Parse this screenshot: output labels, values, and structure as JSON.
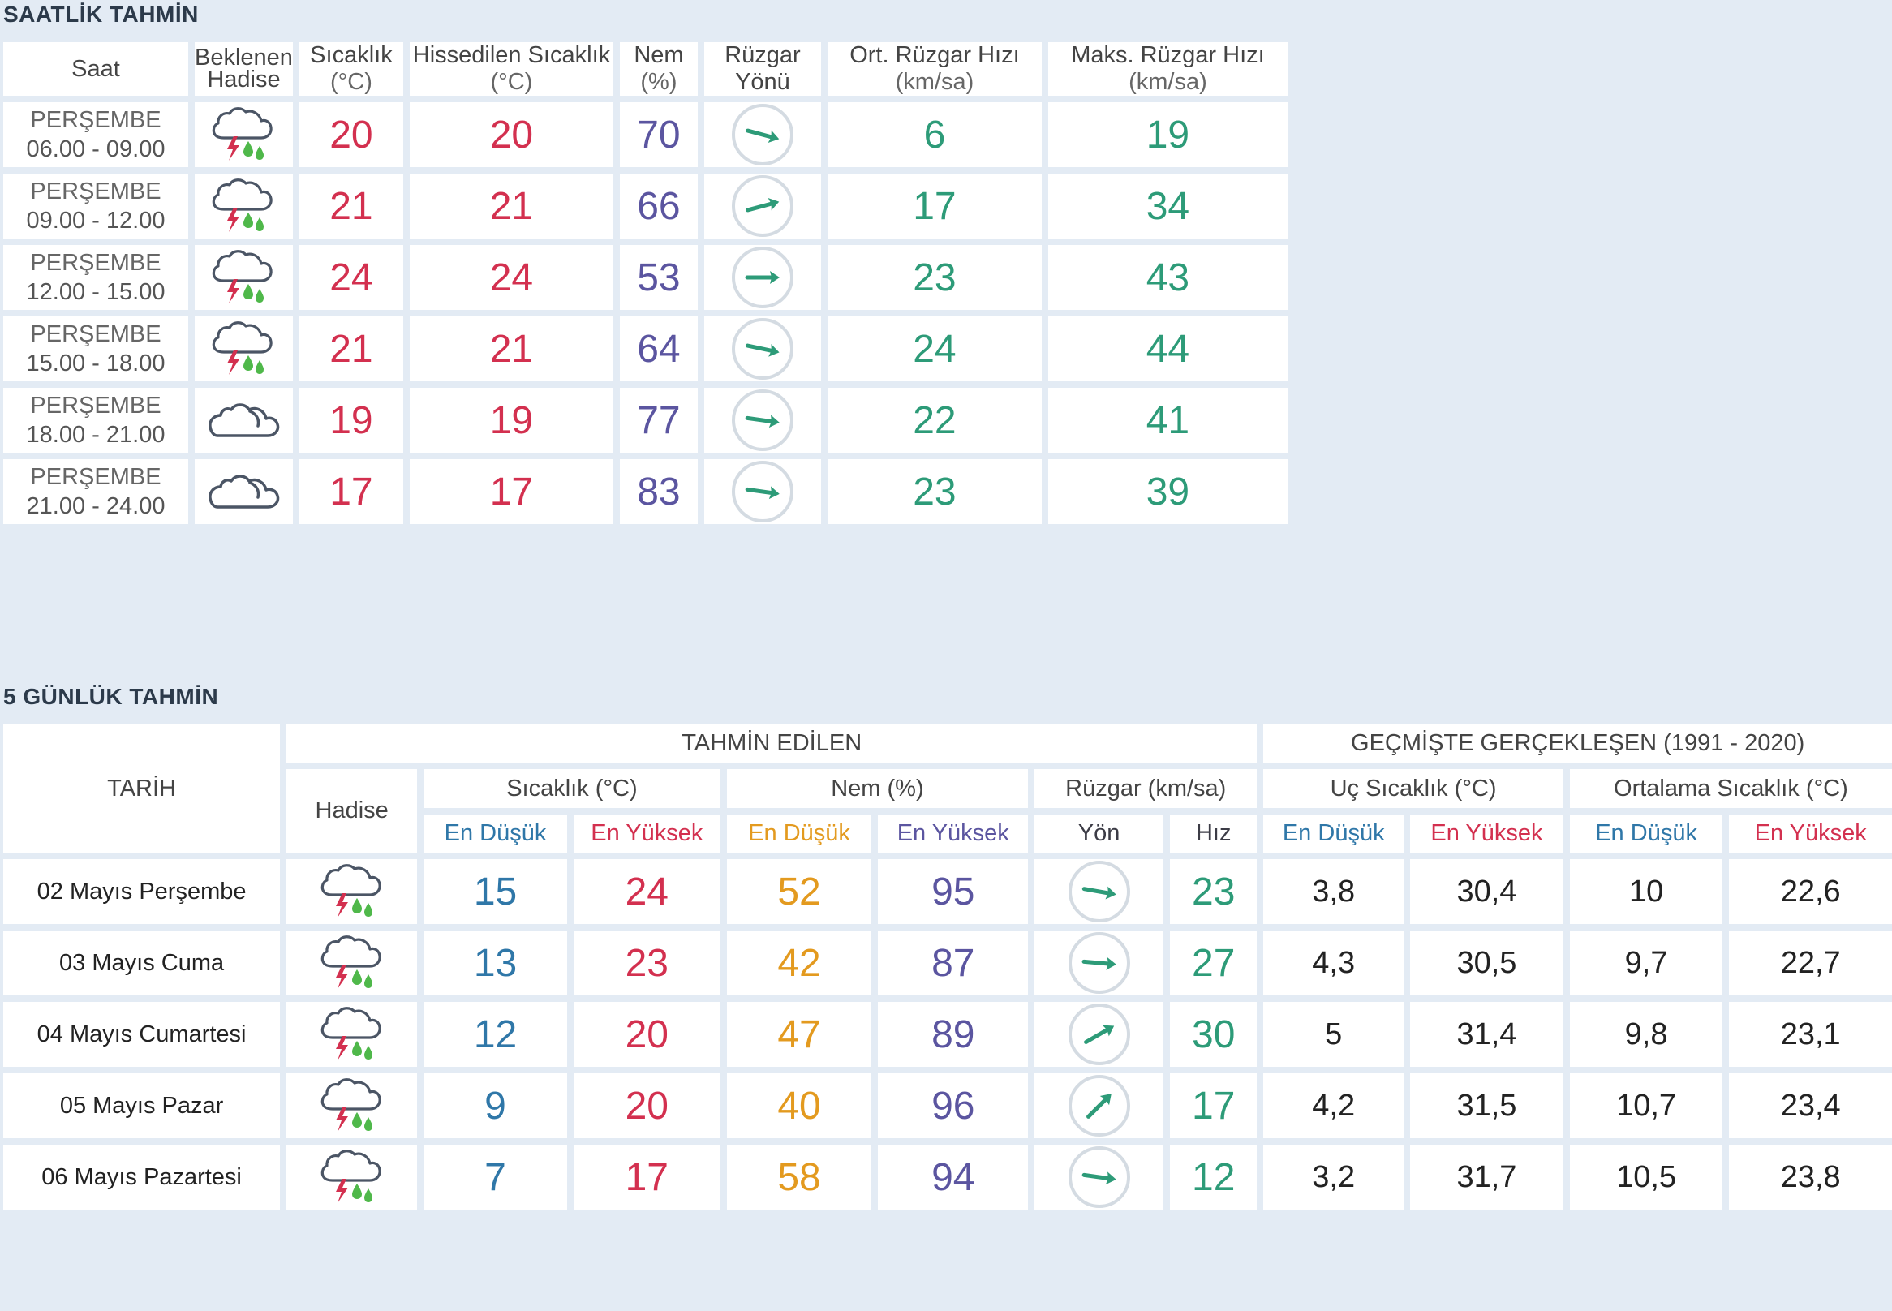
{
  "hourly": {
    "title": "SAATLİK TAHMİN",
    "headers": {
      "saat": "Saat",
      "hadise_1": "Beklenen",
      "hadise_2": "Hadise",
      "temp": "Sıcaklık",
      "temp_unit": "(°C)",
      "feels": "Hissedilen Sıcaklık",
      "feels_unit": "(°C)",
      "hum": "Nem",
      "hum_unit": "(%)",
      "wind_dir": "Rüzgar Yönü",
      "avg_wind": "Ort. Rüzgar Hızı",
      "avg_wind_unit": "(km/sa)",
      "max_wind": "Maks. Rüzgar Hızı",
      "max_wind_unit": "(km/sa)"
    },
    "rows": [
      {
        "day": "PERŞEMBE",
        "range": "06.00 - 09.00",
        "icon": "thunder-rain-icon",
        "temp": "20",
        "feels": "20",
        "hum": "70",
        "wind_icon": "wind-arrow-icon",
        "wind_rotation_deg": 15,
        "avg": "6",
        "max": "19"
      },
      {
        "day": "PERŞEMBE",
        "range": "09.00 - 12.00",
        "icon": "thunder-rain-icon",
        "temp": "21",
        "feels": "21",
        "hum": "66",
        "wind_icon": "wind-arrow-icon",
        "wind_rotation_deg": -15,
        "avg": "17",
        "max": "34"
      },
      {
        "day": "PERŞEMBE",
        "range": "12.00 - 15.00",
        "icon": "thunder-rain-icon",
        "temp": "24",
        "feels": "24",
        "hum": "53",
        "wind_icon": "wind-arrow-icon",
        "wind_rotation_deg": 0,
        "avg": "23",
        "max": "43"
      },
      {
        "day": "PERŞEMBE",
        "range": "15.00 - 18.00",
        "icon": "thunder-rain-icon",
        "temp": "21",
        "feels": "21",
        "hum": "64",
        "wind_icon": "wind-arrow-icon",
        "wind_rotation_deg": 12,
        "avg": "24",
        "max": "44"
      },
      {
        "day": "PERŞEMBE",
        "range": "18.00 - 21.00",
        "icon": "cloud-icon",
        "temp": "19",
        "feels": "19",
        "hum": "77",
        "wind_icon": "wind-arrow-icon",
        "wind_rotation_deg": 8,
        "avg": "22",
        "max": "41"
      },
      {
        "day": "PERŞEMBE",
        "range": "21.00 - 24.00",
        "icon": "cloud-icon",
        "temp": "17",
        "feels": "17",
        "hum": "83",
        "wind_icon": "wind-arrow-icon",
        "wind_rotation_deg": 8,
        "avg": "23",
        "max": "39"
      }
    ]
  },
  "daily": {
    "title": "5 GÜNLÜK TAHMİN",
    "headers": {
      "tarih": "TARİH",
      "forecast_group": "TAHMİN EDİLEN",
      "history_group": "GEÇMİŞTE GERÇEKLEŞEN (1991 - 2020)",
      "hadise": "Hadise",
      "temp": "Sıcaklık (°C)",
      "hum": "Nem (%)",
      "wind": "Rüzgar (km/sa)",
      "extreme": "Uç Sıcaklık (°C)",
      "average": "Ortalama Sıcaklık (°C)",
      "min": "En Düşük",
      "max": "En Yüksek",
      "dir": "Yön",
      "speed": "Hız"
    },
    "rows": [
      {
        "date": "02 Mayıs Perşembe",
        "icon": "thunder-rain-icon",
        "tmin": "15",
        "tmax": "24",
        "hmin": "52",
        "hmax": "95",
        "wind_rotation_deg": 10,
        "speed": "23",
        "xmin": "3,8",
        "xmax": "30,4",
        "amin": "10",
        "amax": "22,6"
      },
      {
        "date": "03 Mayıs Cuma",
        "icon": "thunder-rain-icon",
        "tmin": "13",
        "tmax": "23",
        "hmin": "42",
        "hmax": "87",
        "wind_rotation_deg": 5,
        "speed": "27",
        "xmin": "4,3",
        "xmax": "30,5",
        "amin": "9,7",
        "amax": "22,7"
      },
      {
        "date": "04 Mayıs Cumartesi",
        "icon": "thunder-rain-icon",
        "tmin": "12",
        "tmax": "20",
        "hmin": "47",
        "hmax": "89",
        "wind_rotation_deg": -30,
        "speed": "30",
        "xmin": "5",
        "xmax": "31,4",
        "amin": "9,8",
        "amax": "23,1"
      },
      {
        "date": "05 Mayıs Pazar",
        "icon": "thunder-rain-icon",
        "tmin": "9",
        "tmax": "20",
        "hmin": "40",
        "hmax": "96",
        "wind_rotation_deg": -45,
        "speed": "17",
        "xmin": "4,2",
        "xmax": "31,5",
        "amin": "10,7",
        "amax": "23,4"
      },
      {
        "date": "06 Mayıs Pazartesi",
        "icon": "thunder-rain-icon",
        "tmin": "7",
        "tmax": "17",
        "hmin": "58",
        "hmax": "94",
        "wind_rotation_deg": 8,
        "speed": "12",
        "xmin": "3,2",
        "xmax": "31,7",
        "amin": "10,5",
        "amax": "23,8"
      }
    ]
  },
  "colors": {
    "background": "#e3ebf4",
    "temp_red": "#d3304f",
    "humidity_purple": "#5b55a0",
    "wind_teal": "#2d9b78",
    "min_blue": "#2f77a8",
    "hum_min_orange": "#e39a1f"
  }
}
